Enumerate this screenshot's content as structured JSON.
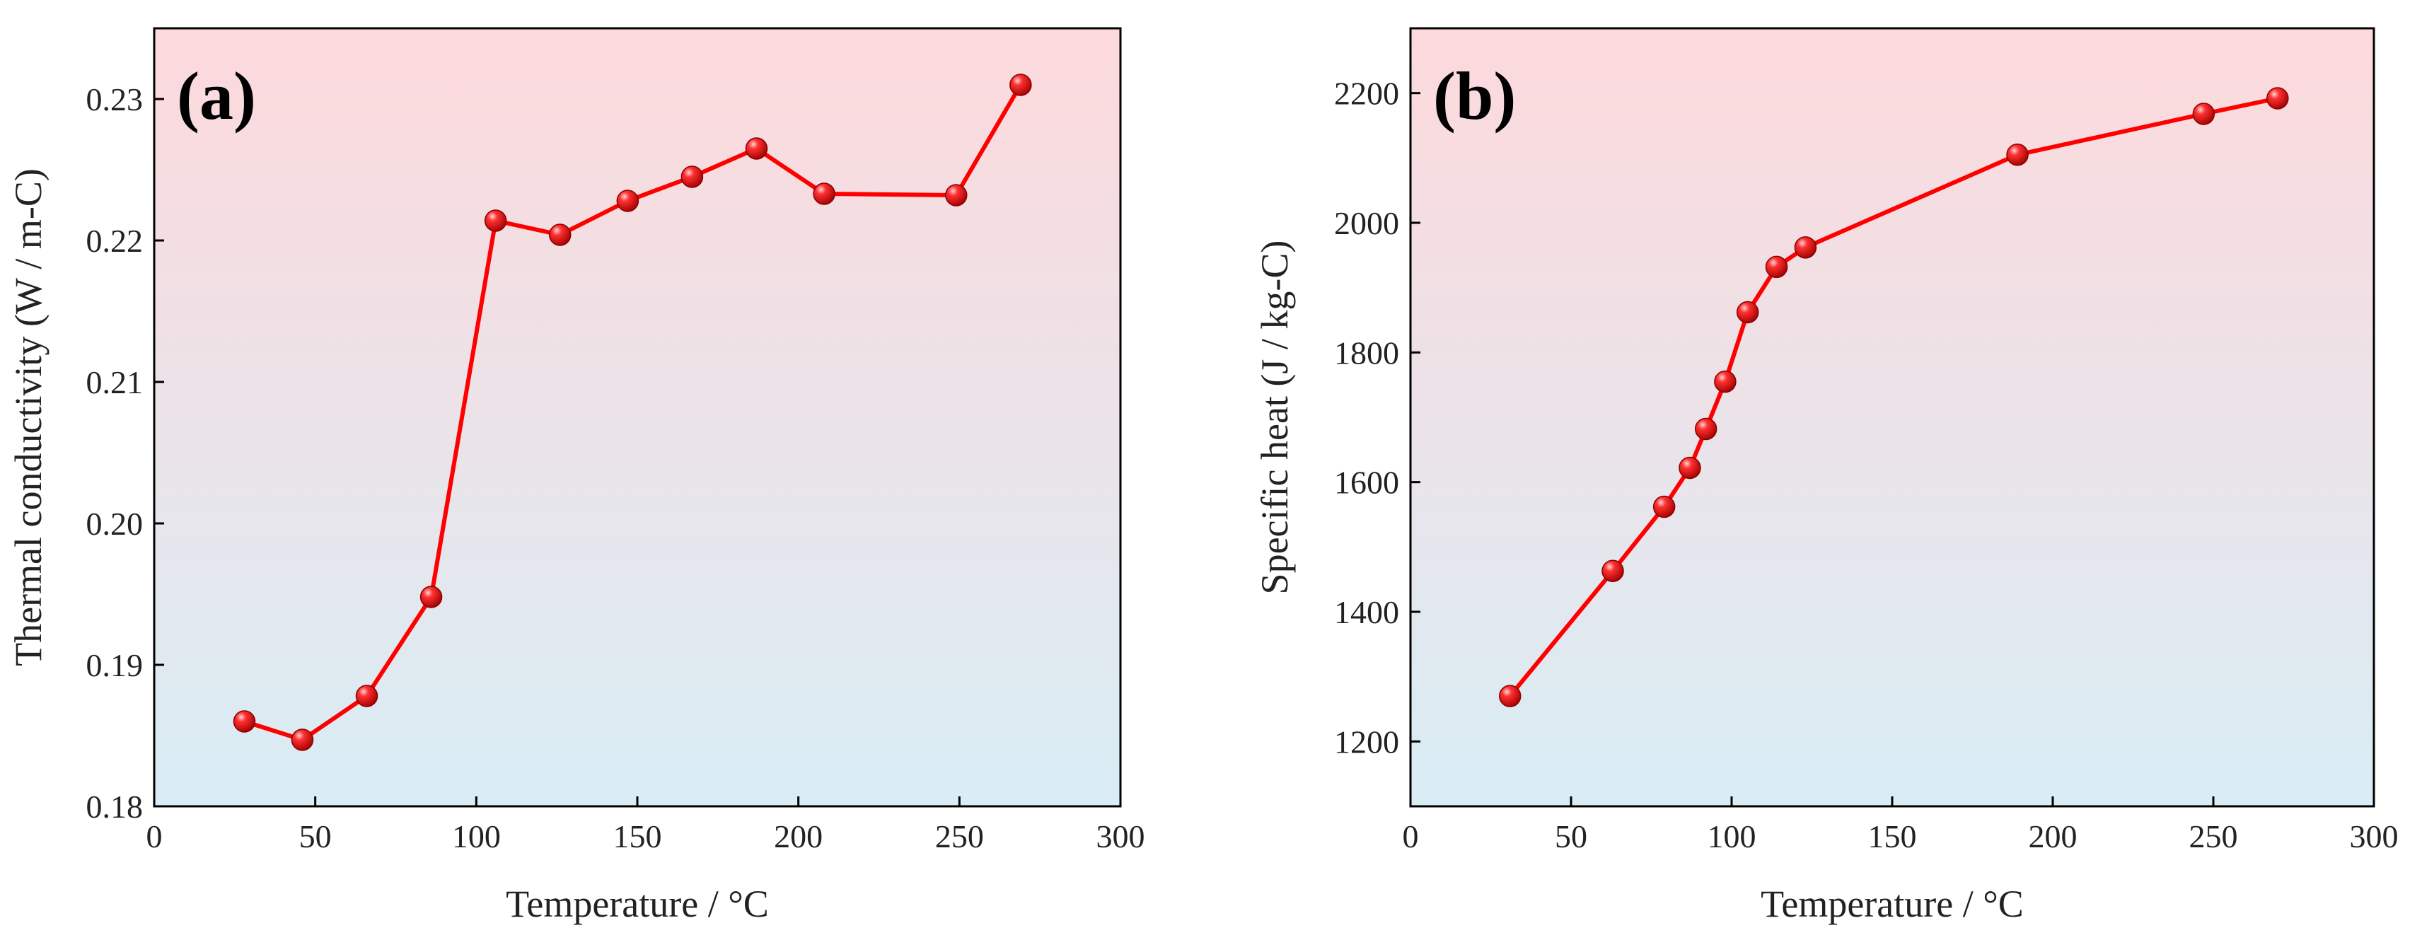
{
  "chart_data": [
    {
      "type": "line",
      "panel_label": "(a)",
      "title": "",
      "xlabel": "Temperature / °C",
      "ylabel": "Thermal conductivity (W / m-C)",
      "xlim": [
        0,
        300
      ],
      "ylim": [
        0.18,
        0.235
      ],
      "xticks": [
        0,
        50,
        100,
        150,
        200,
        250,
        300
      ],
      "yticks": [
        0.18,
        0.19,
        0.2,
        0.21,
        0.22,
        0.23
      ],
      "ytick_labels": [
        "0.18",
        "0.19",
        "0.20",
        "0.21",
        "0.22",
        "0.23"
      ],
      "grid": false,
      "background_gradient": [
        "#fdd9dc",
        "#d9edf5"
      ],
      "series": [
        {
          "name": "Thermal conductivity",
          "color": "#ff0000",
          "x": [
            28,
            46,
            66,
            86,
            106,
            126,
            147,
            167,
            187,
            208,
            249,
            269
          ],
          "y": [
            0.186,
            0.1847,
            0.1878,
            0.1948,
            0.2214,
            0.2204,
            0.2228,
            0.2245,
            0.2265,
            0.2233,
            0.2232,
            0.231
          ]
        }
      ]
    },
    {
      "type": "line",
      "panel_label": "(b)",
      "title": "",
      "xlabel": "Temperature / °C",
      "ylabel": "Specific heat (J / kg-C)",
      "xlim": [
        0,
        300
      ],
      "ylim": [
        1100,
        2300
      ],
      "xticks": [
        0,
        50,
        100,
        150,
        200,
        250,
        300
      ],
      "yticks": [
        1200,
        1400,
        1600,
        1800,
        2000,
        2200
      ],
      "ytick_labels": [
        "1200",
        "1400",
        "1600",
        "1800",
        "2000",
        "2200"
      ],
      "grid": false,
      "background_gradient": [
        "#fdd9dc",
        "#d9edf5"
      ],
      "series": [
        {
          "name": "Specific heat",
          "color": "#ff0000",
          "x": [
            31,
            63,
            79,
            87,
            92,
            98,
            105,
            114,
            123,
            189,
            247,
            270
          ],
          "y": [
            1270,
            1463,
            1562,
            1622,
            1682,
            1755,
            1862,
            1932,
            1962,
            2105,
            2168,
            2192
          ]
        }
      ]
    }
  ]
}
